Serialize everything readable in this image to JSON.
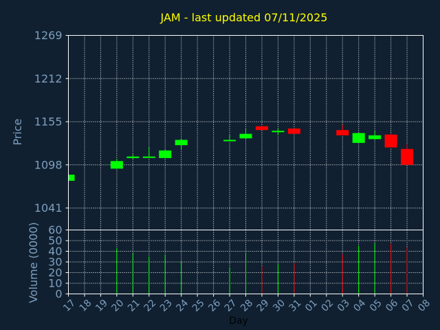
{
  "chart_data": {
    "type": "candlestick",
    "title": "JAM - last updated 07/11/2025",
    "colors": {
      "background": "#102030",
      "axis": "#ffffff",
      "grid": "#ffffff",
      "text": "#7f9fbf",
      "title": "#ffff00",
      "up": "#00ff00",
      "down": "#ff0000"
    },
    "price_panel": {
      "ylabel": "Price",
      "ylim": [
        1012,
        1269
      ],
      "yticks": [
        1269,
        1212,
        1155,
        1098,
        1041
      ],
      "grid": true
    },
    "volume_panel": {
      "ylabel": "Volume (0000)",
      "ylim": [
        0,
        60
      ],
      "yticks": [
        60,
        50,
        40,
        30,
        20,
        10,
        0
      ],
      "grid": true
    },
    "xlabel": "Day",
    "x_labels": [
      "17",
      "18",
      "19",
      "20",
      "21",
      "22",
      "23",
      "24",
      "25",
      "26",
      "27",
      "28",
      "29",
      "30",
      "31",
      "01",
      "02",
      "03",
      "04",
      "05",
      "06",
      "07",
      "08"
    ],
    "candles": [
      {
        "day": "17",
        "open": 1077,
        "close": 1085,
        "high": 1085,
        "low": 1077,
        "volume": 0
      },
      {
        "day": "20",
        "open": 1093,
        "close": 1103,
        "high": 1106,
        "low": 1093,
        "volume": 43
      },
      {
        "day": "21",
        "open": 1107,
        "close": 1109,
        "high": 1112,
        "low": 1106,
        "volume": 38
      },
      {
        "day": "22",
        "open": 1108,
        "close": 1109,
        "high": 1121,
        "low": 1108,
        "volume": 35
      },
      {
        "day": "23",
        "open": 1107,
        "close": 1117,
        "high": 1118,
        "low": 1107,
        "volume": 37
      },
      {
        "day": "24",
        "open": 1124,
        "close": 1131,
        "high": 1132,
        "low": 1119,
        "volume": 30
      },
      {
        "day": "27",
        "open": 1130,
        "close": 1131,
        "high": 1137,
        "low": 1129,
        "volume": 25
      },
      {
        "day": "28",
        "open": 1133,
        "close": 1139,
        "high": 1146,
        "low": 1133,
        "volume": 39
      },
      {
        "day": "29",
        "open": 1149,
        "close": 1144,
        "high": 1150,
        "low": 1144,
        "volume": 26
      },
      {
        "day": "30",
        "open": 1142,
        "close": 1143,
        "high": 1146,
        "low": 1137,
        "volume": 28
      },
      {
        "day": "31",
        "open": 1146,
        "close": 1139,
        "high": 1146,
        "low": 1139,
        "volume": 29
      },
      {
        "day": "03",
        "open": 1144,
        "close": 1137,
        "high": 1151,
        "low": 1137,
        "volume": 37
      },
      {
        "day": "04",
        "open": 1127,
        "close": 1140,
        "high": 1140,
        "low": 1127,
        "volume": 45
      },
      {
        "day": "05",
        "open": 1132,
        "close": 1137,
        "high": 1143,
        "low": 1131,
        "volume": 48
      },
      {
        "day": "06",
        "open": 1138,
        "close": 1121,
        "high": 1139,
        "low": 1121,
        "volume": 47
      },
      {
        "day": "07",
        "open": 1119,
        "close": 1098,
        "high": 1126,
        "low": 1098,
        "volume": 44
      }
    ]
  }
}
